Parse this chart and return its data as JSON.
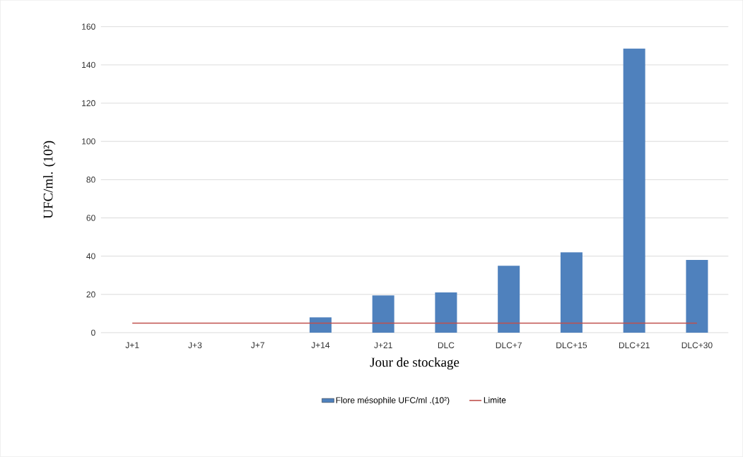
{
  "chart_data": {
    "type": "bar",
    "xlabel": "Jour de stockage",
    "ylabel": "UFC/ml. (10²)",
    "categories": [
      "J+1",
      "J+3",
      "J+7",
      "J+14",
      "J+21",
      "DLC",
      "DLC+7",
      "DLC+15",
      "DLC+21",
      "DLC+30"
    ],
    "series": [
      {
        "name": "Flore mésophile UFC/ml .(10²)",
        "color": "#4f81bd",
        "values": [
          0,
          0,
          0,
          8,
          19.5,
          21,
          35,
          42,
          148.5,
          38
        ]
      },
      {
        "name": "Limite",
        "type": "line",
        "color": "#c0504d",
        "values": [
          5,
          5,
          5,
          5,
          5,
          5,
          5,
          5,
          5,
          5
        ]
      }
    ],
    "ylim": [
      0,
      160
    ],
    "yticks": [
      0,
      20,
      40,
      60,
      80,
      100,
      120,
      140,
      160
    ],
    "grid": "y",
    "legend": "bottom"
  }
}
